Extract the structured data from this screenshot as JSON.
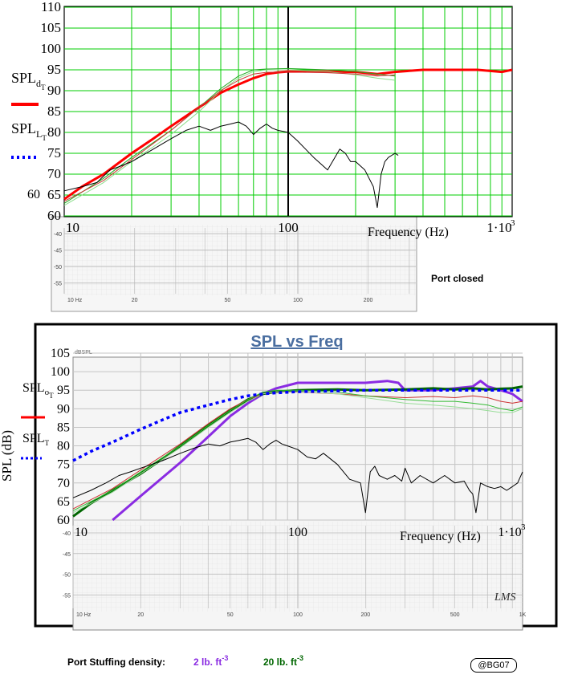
{
  "chart_data": [
    {
      "type": "line",
      "x_scale": "log",
      "xlim": [
        10,
        1000
      ],
      "ylim": [
        60,
        110
      ],
      "xticks": [
        "10",
        "100"
      ],
      "xtick_last": "1·10",
      "xtick_last_exp": "3",
      "yticks": [
        60,
        65,
        70,
        75,
        80,
        85,
        90,
        95,
        100,
        105,
        110
      ],
      "extra_ylabel": "60",
      "xlabel": "Frequency (Hz)",
      "legend_title_1": "SPL",
      "legend_sub_1": "d",
      "legend_subsub_1": "T",
      "legend_title_2": "SPL",
      "legend_sub_2": "L",
      "legend_subsub_2": "T",
      "grid": true,
      "marker_line_x": 100,
      "series": [
        {
          "name": "SPL d_T",
          "color": "#ff0000",
          "style": "solid-thick",
          "x": [
            10,
            12,
            15,
            20,
            25,
            30,
            40,
            50,
            60,
            70,
            80,
            90,
            100,
            150,
            200,
            250,
            300,
            400,
            500,
            700,
            900,
            1000
          ],
          "y": [
            64,
            67,
            70,
            75,
            78.5,
            81.5,
            86,
            89.5,
            91.5,
            93,
            94,
            94.4,
            94.6,
            94.6,
            94.5,
            94,
            94.5,
            95,
            95,
            95,
            94.5,
            95
          ]
        },
        {
          "name": "sim green",
          "color": "#22aa22",
          "style": "solid",
          "x": [
            10,
            15,
            20,
            30,
            40,
            50,
            60,
            70,
            80,
            100,
            150,
            200,
            250,
            300
          ],
          "y": [
            63,
            69,
            74,
            80.5,
            86,
            90.5,
            93.5,
            95,
            95.2,
            95.3,
            95,
            94.6,
            94,
            93.5
          ]
        },
        {
          "name": "sim light green",
          "color": "#88dd88",
          "style": "solid",
          "x": [
            10,
            15,
            20,
            30,
            40,
            50,
            60,
            70,
            80,
            100,
            150,
            200,
            250,
            300
          ],
          "y": [
            62.5,
            68,
            73,
            79.5,
            85,
            90,
            93,
            94.6,
            95,
            95,
            94.6,
            93.8,
            93,
            92.5
          ]
        },
        {
          "name": "sim red thin",
          "color": "#cc3333",
          "style": "solid",
          "x": [
            10,
            15,
            20,
            30,
            40,
            50,
            60,
            70,
            80,
            100,
            150,
            200,
            250,
            300
          ],
          "y": [
            63.5,
            68.5,
            73.5,
            80.5,
            86,
            90,
            92.5,
            94,
            94.4,
            94.5,
            94.3,
            94,
            93.5,
            93.8
          ]
        },
        {
          "name": "measured black",
          "color": "#000000",
          "style": "solid",
          "x": [
            10,
            12,
            14,
            16,
            18,
            20,
            25,
            30,
            35,
            40,
            45,
            50,
            55,
            60,
            65,
            70,
            75,
            80,
            85,
            90,
            100,
            110,
            130,
            150,
            170,
            180,
            190,
            200,
            220,
            240,
            250,
            260,
            270,
            280,
            300,
            310
          ],
          "y": [
            66,
            67,
            68,
            71,
            72,
            73,
            76,
            78.5,
            80.5,
            81.5,
            80.5,
            81.5,
            82,
            82.5,
            81.5,
            79.5,
            81,
            82,
            81,
            80.5,
            80,
            78,
            74,
            71,
            76,
            75,
            73,
            73,
            71,
            67,
            62,
            70,
            73,
            74,
            75,
            74.5
          ]
        }
      ],
      "bottom_axis_label": "Port closed",
      "bottom_yticks": [
        "-40",
        "-45",
        "-50",
        "-55"
      ],
      "bottom_xticks": [
        "10 Hz",
        "20",
        "50",
        "100",
        "200"
      ]
    },
    {
      "type": "line",
      "title": "SPL vs Freq",
      "x_scale": "log",
      "xlim": [
        10,
        1000
      ],
      "ylim": [
        60,
        105
      ],
      "xticks": [
        "10",
        "100"
      ],
      "xtick_last": "1·10",
      "xtick_last_exp": "3",
      "yticks": [
        60,
        65,
        70,
        75,
        80,
        85,
        90,
        95,
        100,
        105
      ],
      "ylabel": "SPL (dB)",
      "xlabel": "Frequency (Hz)",
      "corner_label": "dBSPL",
      "watermark": "LMS",
      "legend_title_1": "SPL",
      "legend_sub_1": "o",
      "legend_subsub_1": "T",
      "legend_title_2": "SPL",
      "legend_sub_2": "",
      "legend_subsub_2": "T",
      "grid": true,
      "series": [
        {
          "name": "purple 2 lb",
          "color": "#8a2be2",
          "style": "solid-thick",
          "x": [
            15,
            20,
            30,
            40,
            50,
            60,
            70,
            80,
            100,
            150,
            200,
            250,
            280,
            300,
            400,
            500,
            600,
            650,
            700,
            800,
            900,
            1000
          ],
          "y": [
            60,
            66.5,
            75.5,
            82.5,
            88,
            91.5,
            94,
            95.5,
            97,
            97,
            97,
            97.5,
            97,
            95,
            95,
            95.5,
            96,
            97.5,
            96,
            95,
            94,
            92
          ]
        },
        {
          "name": "dark green 20 lb",
          "color": "#006600",
          "style": "solid-thick",
          "x": [
            10,
            12,
            15,
            20,
            25,
            30,
            40,
            50,
            60,
            70,
            80,
            100,
            150,
            200,
            300,
            400,
            500,
            600,
            700,
            800,
            900,
            1000
          ],
          "y": [
            61,
            64.5,
            68,
            72.5,
            76.5,
            80,
            85.5,
            89.5,
            92.5,
            94,
            94.6,
            95,
            95.2,
            95,
            95.2,
            95.5,
            95.2,
            95.5,
            95.2,
            95.4,
            95.5,
            96
          ]
        },
        {
          "name": "red thin",
          "color": "#cc3333",
          "style": "solid",
          "x": [
            10,
            15,
            20,
            30,
            40,
            50,
            60,
            70,
            80,
            100,
            150,
            200,
            300,
            400,
            500,
            600,
            700,
            800,
            900,
            1000
          ],
          "y": [
            63,
            68.5,
            73.5,
            80.5,
            86,
            90,
            92.5,
            94,
            94.5,
            94.5,
            94,
            93.5,
            93,
            93.3,
            93,
            93.5,
            93,
            92,
            91.5,
            92
          ]
        },
        {
          "name": "green thin",
          "color": "#33bb33",
          "style": "solid",
          "x": [
            10,
            15,
            20,
            30,
            40,
            50,
            60,
            70,
            80,
            100,
            150,
            200,
            300,
            400,
            500,
            600,
            700,
            800,
            900,
            1000
          ],
          "y": [
            62.5,
            68,
            73,
            80,
            85.5,
            89.5,
            92.5,
            94.5,
            95,
            95,
            94.5,
            93.5,
            92.5,
            92,
            92,
            91.5,
            91,
            90,
            89.5,
            90.5
          ]
        },
        {
          "name": "light green thin",
          "color": "#99dd99",
          "style": "solid",
          "x": [
            10,
            15,
            20,
            30,
            40,
            50,
            60,
            70,
            80,
            100,
            150,
            200,
            300,
            400,
            500,
            600,
            700,
            800,
            900,
            1000
          ],
          "y": [
            62,
            67.5,
            72.5,
            79.5,
            85,
            89,
            92,
            94,
            94.6,
            94.6,
            94,
            93,
            91.5,
            91,
            90.5,
            90,
            89.5,
            89,
            89,
            90
          ]
        },
        {
          "name": "blue dotted",
          "color": "#0000ff",
          "style": "dotted-thick",
          "x": [
            10,
            12,
            15,
            20,
            25,
            30,
            40,
            50,
            60,
            70,
            80,
            100,
            150,
            200,
            300,
            400,
            500,
            600,
            700,
            800,
            900,
            1000
          ],
          "y": [
            76,
            78.5,
            81,
            84.5,
            87,
            89,
            91,
            92.5,
            93.5,
            94,
            94.3,
            94.6,
            94.8,
            95,
            95,
            95,
            95,
            95,
            95,
            95,
            95,
            95
          ]
        },
        {
          "name": "measured black",
          "color": "#000000",
          "style": "solid",
          "x": [
            10,
            12,
            14,
            16,
            18,
            20,
            25,
            30,
            35,
            40,
            45,
            50,
            55,
            60,
            65,
            70,
            75,
            80,
            85,
            90,
            100,
            110,
            120,
            130,
            150,
            170,
            190,
            200,
            210,
            220,
            230,
            250,
            270,
            290,
            300,
            320,
            350,
            400,
            450,
            500,
            550,
            580,
            600,
            620,
            650,
            700,
            750,
            800,
            850,
            900,
            950,
            1000
          ],
          "y": [
            66,
            68,
            70,
            72,
            73,
            74,
            76,
            78,
            79.5,
            80.5,
            80,
            81,
            81.5,
            82,
            81,
            79,
            80.5,
            81.5,
            80.5,
            80,
            79,
            77,
            76.5,
            78,
            75,
            71,
            70,
            62,
            73,
            74.5,
            72,
            71,
            72,
            70.5,
            74,
            70,
            72,
            70,
            72,
            70,
            70.5,
            68,
            67,
            62,
            70,
            69,
            68.5,
            69,
            68,
            69,
            70,
            73
          ]
        }
      ],
      "bottom_yticks": [
        "-40",
        "-45",
        "-50",
        "-55"
      ],
      "bottom_xticks": [
        "10 Hz",
        "20",
        "50",
        "100",
        "200",
        "500",
        "1K"
      ]
    }
  ],
  "footer": {
    "label": "Port Stuffing density:",
    "option1": "2 lb. ft",
    "option1_exp": "-3",
    "option1_color": "#8a2be2",
    "option2": "20 lb. ft",
    "option2_exp": "-3",
    "option2_color": "#006600",
    "stamp": "@BG07"
  }
}
